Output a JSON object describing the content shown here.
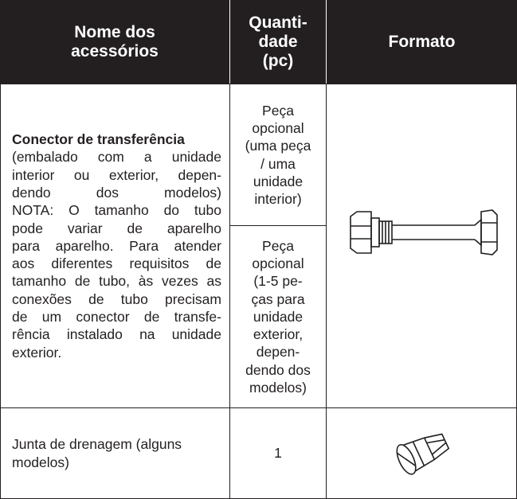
{
  "table": {
    "headers": [
      [
        "Nome dos",
        "acessórios"
      ],
      [
        "Quanti-",
        "dade",
        "(pc)"
      ],
      [
        "Formato"
      ]
    ],
    "rows": [
      {
        "name_title": "Conector de transferência",
        "name": [
          "(embalado com a unidade",
          "interior ou exterior, depen-",
          "dendo dos modelos)",
          "NOTA: O tamanho do tubo",
          "pode variar de aparelho",
          "para aparelho. Para atender",
          "aos diferentes requisitos de",
          "tamanho de tubo, às vezes as",
          "conexões de tubo precisam",
          "de um conector de transfe-",
          "rência instalado na unidade",
          "exterior."
        ],
        "quantity": [
          [
            "Peça",
            "opcional",
            "(uma peça",
            "/ uma",
            "unidade",
            "interior)"
          ],
          [
            "Peça",
            "opcional",
            "(1-5 pe-",
            "ças para",
            "unidade",
            "exterior,",
            "depen-",
            "dendo dos",
            "modelos)"
          ]
        ]
      },
      {
        "name": [
          "Junta de drenagem (alguns",
          "modelos)"
        ],
        "quantity": [
          [
            "1"
          ]
        ]
      }
    ]
  }
}
